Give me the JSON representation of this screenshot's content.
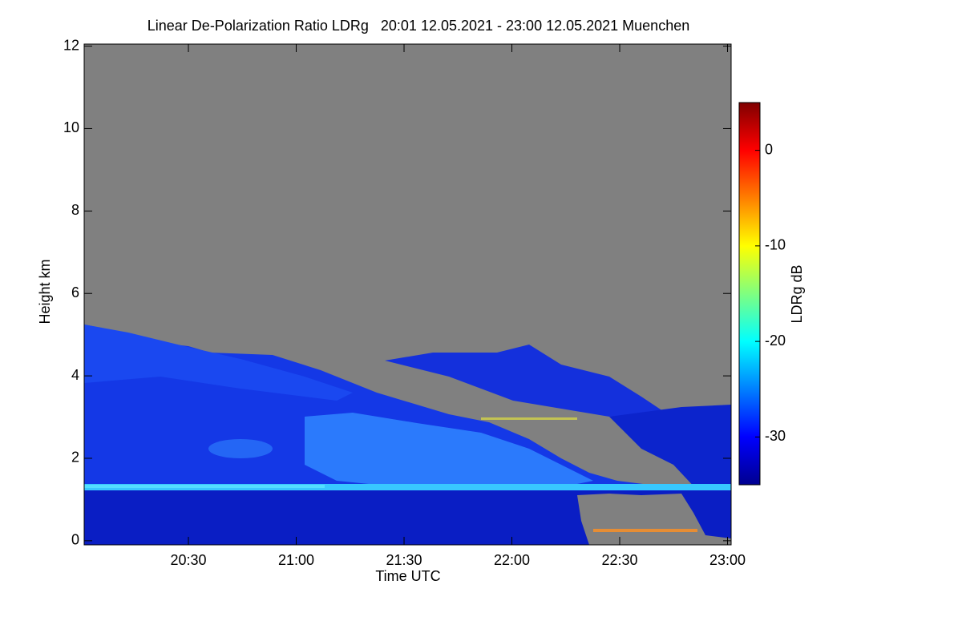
{
  "chart_data": {
    "type": "heatmap",
    "title": "Linear De-Polarization Ratio LDRg   20:01 12.05.2021 - 23:00 12.05.2021 Muenchen",
    "x_label": "Time UTC",
    "y_label": "Height km",
    "xlim": [
      1201,
      1381
    ],
    "xticks": [
      {
        "value": 1230,
        "label": "20:30"
      },
      {
        "value": 1260,
        "label": "21:00"
      },
      {
        "value": 1290,
        "label": "21:30"
      },
      {
        "value": 1320,
        "label": "22:00"
      },
      {
        "value": 1350,
        "label": "22:30"
      },
      {
        "value": 1380,
        "label": "23:00"
      }
    ],
    "ylim": [
      -0.1,
      12.05
    ],
    "yticks": [
      0,
      2,
      4,
      6,
      8,
      10,
      12
    ],
    "colorbar_label": "LDRg dB",
    "colormap": "jet",
    "clim": [
      -35,
      5
    ],
    "cticks": [
      -30,
      -20,
      -10,
      0
    ]
  }
}
